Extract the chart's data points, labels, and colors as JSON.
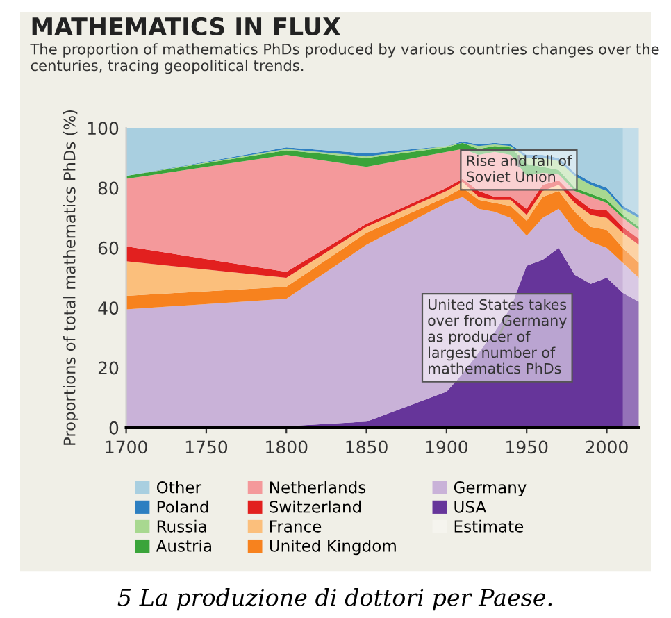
{
  "chart_data": {
    "type": "area",
    "stacked": true,
    "title": "MATHEMATICS IN FLUX",
    "subtitle": "The proportion of mathematics PhDs produced by various countries changes over the centuries, tracing geopolitical trends.",
    "ylabel": "Proportions of total mathematics PhDs (%)",
    "x": [
      1700,
      1800,
      1850,
      1900,
      1910,
      1920,
      1930,
      1940,
      1950,
      1960,
      1970,
      1980,
      1990,
      2000,
      2010,
      2020
    ],
    "series": [
      {
        "name": "USA",
        "color": "#66359a",
        "values": [
          0,
          0.5,
          2,
          12,
          18,
          25,
          32,
          40,
          54,
          56,
          60,
          51,
          48,
          50,
          45,
          42
        ]
      },
      {
        "name": "Germany",
        "color": "#c9b2d8",
        "values": [
          39.5,
          42.5,
          59,
          63,
          59,
          48,
          40,
          30,
          10,
          14,
          13,
          15,
          14,
          10,
          10,
          8
        ]
      },
      {
        "name": "United Kingdom",
        "color": "#f7821e",
        "values": [
          4.5,
          4,
          4,
          2,
          3,
          3,
          3,
          4,
          5,
          7,
          6,
          6,
          5,
          6,
          5,
          5
        ]
      },
      {
        "name": "France",
        "color": "#fbbf7c",
        "values": [
          11.5,
          3,
          2,
          2,
          2,
          1,
          1,
          2,
          2,
          2,
          2,
          3,
          4,
          4,
          5,
          6
        ]
      },
      {
        "name": "Switzerland",
        "color": "#e2201f",
        "values": [
          5,
          2,
          1,
          1,
          1,
          2,
          1,
          1,
          2,
          2,
          1.5,
          2,
          2,
          2.5,
          2,
          2
        ]
      },
      {
        "name": "Netherlands",
        "color": "#f4999b",
        "values": [
          22.5,
          39,
          19,
          12,
          10,
          12,
          15,
          14,
          11,
          4,
          2,
          2,
          4,
          2.5,
          3,
          3
        ]
      },
      {
        "name": "Austria",
        "color": "#3aa43a",
        "values": [
          1,
          1.5,
          3,
          1.5,
          2,
          2,
          2,
          2.5,
          4,
          2,
          1.5,
          1,
          1,
          1,
          1,
          1
        ]
      },
      {
        "name": "Russia",
        "color": "#a8d890",
        "values": [
          0,
          0.5,
          0.5,
          0.5,
          0,
          1,
          0.5,
          0.5,
          2,
          3,
          3,
          4,
          3,
          3,
          2,
          3
        ]
      },
      {
        "name": "Poland",
        "color": "#2d7fc1",
        "values": [
          0,
          0.5,
          1,
          0,
          0.5,
          0.5,
          0.5,
          0.5,
          1,
          1,
          1,
          1,
          1,
          1,
          1,
          1
        ]
      },
      {
        "name": "Other",
        "color": "#a9cfe0",
        "values": [
          16,
          6.5,
          8.5,
          6,
          4.5,
          5.5,
          5,
          5.5,
          9,
          9,
          10,
          15,
          18,
          20,
          26,
          29
        ]
      }
    ],
    "bands": [
      {
        "axis": "x",
        "from": 2010,
        "to": 2020,
        "label": "Estimate"
      }
    ],
    "xlim": [
      1700,
      2020
    ],
    "xticks": [
      1700,
      1750,
      1800,
      1850,
      1900,
      1950,
      2000
    ],
    "ylim": [
      0,
      100
    ],
    "yticks": [
      0,
      20,
      40,
      60,
      80,
      100
    ],
    "grid": false,
    "legend": "bottom",
    "annotations": [
      {
        "text": "Rise and fall of\nSoviet Union",
        "x": 1945,
        "y": 92
      },
      {
        "text": "United States takes\nover from Germany\nas producer of\nlargest number of\nmathematics PhDs",
        "x": 1940,
        "y": 38
      },
      "5 La produzione di dottori per Paese."
    ]
  }
}
